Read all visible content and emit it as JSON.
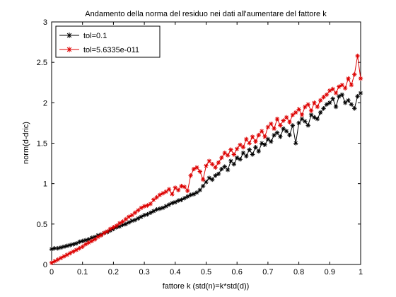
{
  "chart_data": {
    "type": "line",
    "title": "Andamento della norma del residuo nei dati all'aumentare del fattore k",
    "xlabel": "fattore k (std(n)=k*std(d))",
    "ylabel": "norm(d-dric)",
    "xlim": [
      0,
      1
    ],
    "ylim": [
      0,
      3
    ],
    "xticks": [
      0,
      0.1,
      0.2,
      0.3,
      0.4,
      0.5,
      0.6,
      0.7,
      0.8,
      0.9,
      1
    ],
    "xtick_labels": [
      "0",
      "0.1",
      "0.2",
      "0.3",
      "0.4",
      "0.5",
      "0.6",
      "0.7",
      "0.8",
      "0.9",
      "1"
    ],
    "yticks": [
      0,
      0.5,
      1,
      1.5,
      2,
      2.5,
      3
    ],
    "ytick_labels": [
      "0",
      "0.5",
      "1",
      "1.5",
      "2",
      "2.5",
      "3"
    ],
    "grid": false,
    "legend": "top-left",
    "series": [
      {
        "name": "tol=0.1",
        "color": "#000000",
        "marker": "asterisk",
        "x": [
          0,
          0.01,
          0.02,
          0.03,
          0.04,
          0.05,
          0.06,
          0.07,
          0.08,
          0.09,
          0.1,
          0.11,
          0.12,
          0.13,
          0.14,
          0.15,
          0.16,
          0.17,
          0.18,
          0.19,
          0.2,
          0.21,
          0.22,
          0.23,
          0.24,
          0.25,
          0.26,
          0.27,
          0.28,
          0.29,
          0.3,
          0.31,
          0.32,
          0.33,
          0.34,
          0.35,
          0.36,
          0.37,
          0.38,
          0.39,
          0.4,
          0.41,
          0.42,
          0.43,
          0.44,
          0.45,
          0.46,
          0.47,
          0.48,
          0.49,
          0.5,
          0.51,
          0.52,
          0.53,
          0.54,
          0.55,
          0.56,
          0.57,
          0.58,
          0.59,
          0.6,
          0.61,
          0.62,
          0.63,
          0.64,
          0.65,
          0.66,
          0.67,
          0.68,
          0.69,
          0.7,
          0.71,
          0.72,
          0.73,
          0.74,
          0.75,
          0.76,
          0.77,
          0.78,
          0.79,
          0.8,
          0.81,
          0.82,
          0.83,
          0.84,
          0.85,
          0.86,
          0.87,
          0.88,
          0.89,
          0.9,
          0.91,
          0.92,
          0.93,
          0.94,
          0.95,
          0.96,
          0.97,
          0.98,
          0.99,
          1
        ],
        "values": [
          0.19,
          0.2,
          0.2,
          0.21,
          0.22,
          0.23,
          0.24,
          0.25,
          0.26,
          0.28,
          0.29,
          0.3,
          0.31,
          0.33,
          0.34,
          0.36,
          0.37,
          0.39,
          0.4,
          0.42,
          0.44,
          0.46,
          0.47,
          0.49,
          0.5,
          0.52,
          0.54,
          0.55,
          0.57,
          0.59,
          0.61,
          0.62,
          0.64,
          0.66,
          0.68,
          0.69,
          0.7,
          0.72,
          0.74,
          0.76,
          0.77,
          0.79,
          0.8,
          0.82,
          0.84,
          0.86,
          0.87,
          0.89,
          0.92,
          0.97,
          1.02,
          1.07,
          1.05,
          1.1,
          1.12,
          1.18,
          1.21,
          1.17,
          1.28,
          1.24,
          1.32,
          1.3,
          1.38,
          1.34,
          1.42,
          1.36,
          1.45,
          1.4,
          1.5,
          1.48,
          1.55,
          1.52,
          1.6,
          1.63,
          1.58,
          1.68,
          1.65,
          1.6,
          1.72,
          1.5,
          1.75,
          1.8,
          1.77,
          1.72,
          1.85,
          1.82,
          1.8,
          1.88,
          1.93,
          1.98,
          2.0,
          2.05,
          1.95,
          2.08,
          2.1,
          2.0,
          2.03,
          1.98,
          1.93,
          2.08,
          2.12
        ]
      },
      {
        "name": "tol=5.6335e-011",
        "color": "#dd0000",
        "marker": "asterisk",
        "x": [
          0,
          0.01,
          0.02,
          0.03,
          0.04,
          0.05,
          0.06,
          0.07,
          0.08,
          0.09,
          0.1,
          0.11,
          0.12,
          0.13,
          0.14,
          0.15,
          0.16,
          0.17,
          0.18,
          0.19,
          0.2,
          0.21,
          0.22,
          0.23,
          0.24,
          0.25,
          0.26,
          0.27,
          0.28,
          0.29,
          0.3,
          0.31,
          0.32,
          0.33,
          0.34,
          0.35,
          0.36,
          0.37,
          0.38,
          0.39,
          0.4,
          0.41,
          0.42,
          0.43,
          0.44,
          0.45,
          0.46,
          0.47,
          0.48,
          0.49,
          0.5,
          0.51,
          0.52,
          0.53,
          0.54,
          0.55,
          0.56,
          0.57,
          0.58,
          0.59,
          0.6,
          0.61,
          0.62,
          0.63,
          0.64,
          0.65,
          0.66,
          0.67,
          0.68,
          0.69,
          0.7,
          0.71,
          0.72,
          0.73,
          0.74,
          0.75,
          0.76,
          0.77,
          0.78,
          0.79,
          0.8,
          0.81,
          0.82,
          0.83,
          0.84,
          0.85,
          0.86,
          0.87,
          0.88,
          0.89,
          0.9,
          0.91,
          0.92,
          0.93,
          0.94,
          0.95,
          0.96,
          0.97,
          0.98,
          0.99,
          1
        ],
        "values": [
          0.02,
          0.04,
          0.06,
          0.08,
          0.1,
          0.12,
          0.14,
          0.16,
          0.18,
          0.2,
          0.22,
          0.25,
          0.27,
          0.29,
          0.31,
          0.34,
          0.36,
          0.39,
          0.41,
          0.44,
          0.46,
          0.48,
          0.51,
          0.53,
          0.56,
          0.59,
          0.61,
          0.64,
          0.67,
          0.7,
          0.72,
          0.73,
          0.75,
          0.8,
          0.83,
          0.86,
          0.88,
          0.9,
          0.93,
          0.87,
          0.95,
          0.92,
          0.97,
          0.96,
          0.91,
          1.1,
          1.18,
          1.2,
          1.15,
          1.05,
          1.22,
          1.28,
          1.24,
          1.2,
          1.26,
          1.32,
          1.38,
          1.35,
          1.42,
          1.36,
          1.43,
          1.48,
          1.45,
          1.55,
          1.5,
          1.58,
          1.52,
          1.6,
          1.65,
          1.58,
          1.7,
          1.74,
          1.68,
          1.8,
          1.72,
          1.78,
          1.82,
          1.76,
          1.85,
          1.88,
          1.92,
          1.85,
          1.95,
          1.98,
          1.9,
          2.0,
          1.95,
          2.03,
          2.07,
          2.1,
          2.15,
          2.17,
          2.12,
          2.2,
          2.22,
          2.18,
          2.3,
          2.22,
          2.35,
          2.58,
          2.3
        ]
      }
    ]
  }
}
